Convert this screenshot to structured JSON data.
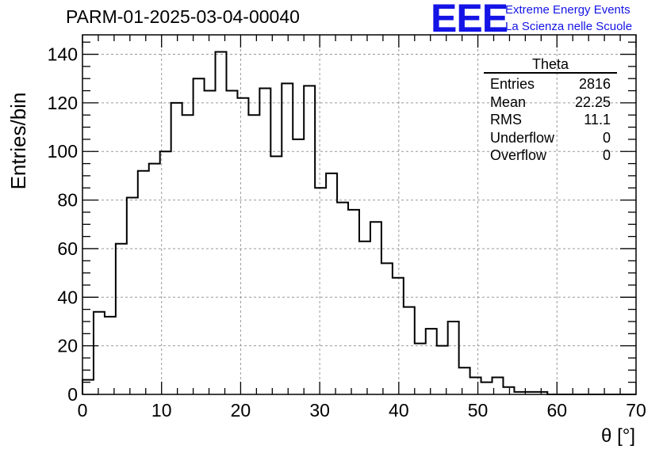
{
  "header": {
    "run_title": "PARM-01-2025-03-04-00040",
    "logo_text": "EEE",
    "logo_line1": "Extreme Energy Events",
    "logo_line2": "La Scienza nelle Scuole"
  },
  "stats_box": {
    "title": "Theta",
    "rows": [
      {
        "label": "Entries",
        "value": "2816"
      },
      {
        "label": "Mean",
        "value": "22.25"
      },
      {
        "label": "RMS",
        "value": "11.1"
      },
      {
        "label": "Underflow",
        "value": "0"
      },
      {
        "label": "Overflow",
        "value": "0"
      }
    ]
  },
  "colors": {
    "line": "#000000",
    "grid": "#999999",
    "brand": "#1414e6"
  },
  "chart_data": {
    "type": "histogram",
    "title": "PARM-01-2025-03-04-00040",
    "xlabel": "θ [°]",
    "ylabel": "Entries/bin",
    "xlim": [
      0,
      70
    ],
    "ylim": [
      0,
      148
    ],
    "xticks": [
      0,
      10,
      20,
      30,
      40,
      50,
      60,
      70
    ],
    "yticks": [
      0,
      20,
      40,
      60,
      80,
      100,
      120,
      140
    ],
    "grid": true,
    "bin_edges_start": 0,
    "bin_width": 1.4,
    "values": [
      6,
      34,
      32,
      62,
      81,
      92,
      95,
      100,
      120,
      115,
      130,
      125,
      141,
      125,
      122,
      115,
      126,
      98,
      128,
      105,
      127,
      85,
      91,
      79,
      76,
      63,
      71,
      54,
      48,
      36,
      21,
      27,
      20,
      30,
      11,
      7,
      5,
      7,
      3,
      1,
      1,
      1,
      0,
      0,
      0,
      0,
      0,
      0,
      0,
      0
    ]
  }
}
